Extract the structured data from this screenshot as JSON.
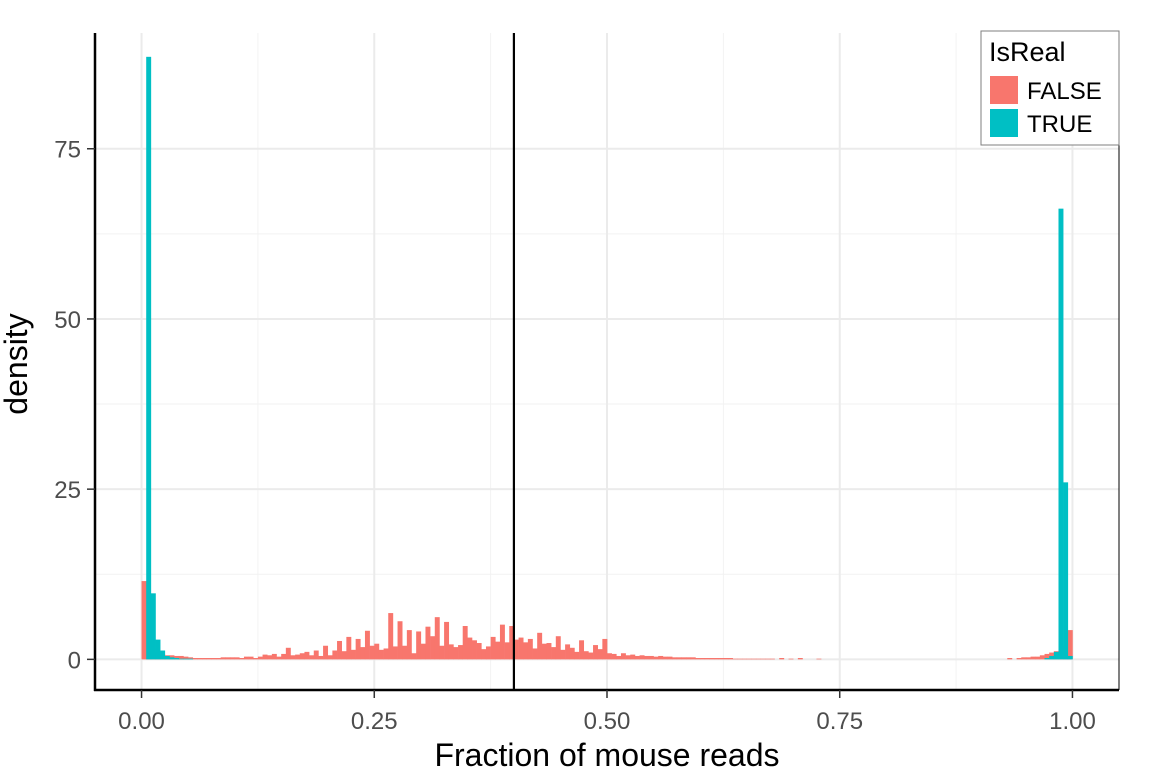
{
  "chart_data": {
    "type": "bar",
    "subtype": "overlapping-histogram",
    "xlabel": "Fraction of mouse reads",
    "ylabel": "density",
    "xlim": [
      -0.05,
      1.05
    ],
    "ylim": [
      -4.5,
      92
    ],
    "x_ticks": [
      0.0,
      0.25,
      0.5,
      0.75,
      1.0
    ],
    "x_tick_labels": [
      "0.00",
      "0.25",
      "0.50",
      "0.75",
      "1.00"
    ],
    "y_ticks": [
      0,
      25,
      50,
      75
    ],
    "y_tick_labels": [
      "0",
      "25",
      "50",
      "75"
    ],
    "grid": true,
    "bin_width": 0.005,
    "vline": {
      "x": 0.4,
      "color": "#000000"
    },
    "legend": {
      "title": "IsReal",
      "position": "top-right",
      "entries": [
        "FALSE",
        "TRUE"
      ]
    },
    "colors": {
      "FALSE": "#F8766D",
      "TRUE": "#00BFC4"
    },
    "series": [
      {
        "name": "FALSE",
        "bins": [
          [
            0.0,
            11.5
          ],
          [
            0.005,
            1.0
          ],
          [
            0.01,
            1.0
          ],
          [
            0.015,
            0.8
          ],
          [
            0.02,
            0.8
          ],
          [
            0.025,
            0.6
          ],
          [
            0.03,
            0.6
          ],
          [
            0.035,
            0.5
          ],
          [
            0.04,
            0.5
          ],
          [
            0.045,
            0.4
          ],
          [
            0.05,
            0.3
          ],
          [
            0.055,
            0.2
          ],
          [
            0.06,
            0.2
          ],
          [
            0.065,
            0.2
          ],
          [
            0.07,
            0.2
          ],
          [
            0.075,
            0.2
          ],
          [
            0.08,
            0.2
          ],
          [
            0.085,
            0.3
          ],
          [
            0.09,
            0.3
          ],
          [
            0.095,
            0.3
          ],
          [
            0.1,
            0.3
          ],
          [
            0.105,
            0.2
          ],
          [
            0.11,
            0.4
          ],
          [
            0.115,
            0.4
          ],
          [
            0.12,
            0.2
          ],
          [
            0.125,
            0.4
          ],
          [
            0.13,
            0.7
          ],
          [
            0.135,
            0.6
          ],
          [
            0.14,
            0.8
          ],
          [
            0.145,
            0.4
          ],
          [
            0.15,
            0.8
          ],
          [
            0.155,
            1.7
          ],
          [
            0.16,
            0.6
          ],
          [
            0.165,
            0.7
          ],
          [
            0.17,
            0.9
          ],
          [
            0.175,
            1.1
          ],
          [
            0.18,
            0.6
          ],
          [
            0.185,
            1.3
          ],
          [
            0.19,
            0.5
          ],
          [
            0.195,
            2.0
          ],
          [
            0.2,
            0.6
          ],
          [
            0.205,
            1.3
          ],
          [
            0.21,
            2.7
          ],
          [
            0.215,
            1.2
          ],
          [
            0.22,
            3.3
          ],
          [
            0.225,
            1.4
          ],
          [
            0.23,
            3.0
          ],
          [
            0.235,
            1.8
          ],
          [
            0.24,
            4.2
          ],
          [
            0.245,
            2.0
          ],
          [
            0.25,
            2.3
          ],
          [
            0.255,
            1.4
          ],
          [
            0.26,
            1.6
          ],
          [
            0.265,
            6.8
          ],
          [
            0.27,
            1.9
          ],
          [
            0.275,
            5.6
          ],
          [
            0.28,
            2.0
          ],
          [
            0.285,
            4.3
          ],
          [
            0.29,
            0.9
          ],
          [
            0.295,
            4.1
          ],
          [
            0.3,
            2.3
          ],
          [
            0.305,
            4.8
          ],
          [
            0.31,
            3.4
          ],
          [
            0.315,
            6.2
          ],
          [
            0.32,
            2.0
          ],
          [
            0.325,
            5.5
          ],
          [
            0.33,
            2.2
          ],
          [
            0.335,
            1.8
          ],
          [
            0.34,
            2.1
          ],
          [
            0.345,
            4.9
          ],
          [
            0.35,
            3.2
          ],
          [
            0.355,
            2.8
          ],
          [
            0.36,
            2.4
          ],
          [
            0.365,
            1.5
          ],
          [
            0.37,
            1.9
          ],
          [
            0.375,
            3.3
          ],
          [
            0.38,
            2.6
          ],
          [
            0.385,
            5.1
          ],
          [
            0.39,
            2.5
          ],
          [
            0.395,
            4.9
          ],
          [
            0.4,
            2.9
          ],
          [
            0.405,
            3.2
          ],
          [
            0.41,
            2.5
          ],
          [
            0.415,
            3.0
          ],
          [
            0.42,
            1.6
          ],
          [
            0.425,
            3.9
          ],
          [
            0.43,
            2.3
          ],
          [
            0.435,
            2.4
          ],
          [
            0.44,
            1.8
          ],
          [
            0.445,
            3.4
          ],
          [
            0.45,
            1.4
          ],
          [
            0.455,
            2.2
          ],
          [
            0.46,
            1.7
          ],
          [
            0.465,
            1.1
          ],
          [
            0.47,
            2.8
          ],
          [
            0.475,
            1.2
          ],
          [
            0.48,
            1.0
          ],
          [
            0.485,
            2.1
          ],
          [
            0.49,
            1.5
          ],
          [
            0.495,
            3.0
          ],
          [
            0.5,
            0.9
          ],
          [
            0.505,
            0.8
          ],
          [
            0.51,
            0.5
          ],
          [
            0.515,
            0.9
          ],
          [
            0.52,
            0.6
          ],
          [
            0.525,
            0.7
          ],
          [
            0.53,
            0.5
          ],
          [
            0.535,
            0.6
          ],
          [
            0.54,
            0.5
          ],
          [
            0.545,
            0.5
          ],
          [
            0.55,
            0.4
          ],
          [
            0.555,
            0.5
          ],
          [
            0.56,
            0.4
          ],
          [
            0.565,
            0.4
          ],
          [
            0.57,
            0.3
          ],
          [
            0.575,
            0.3
          ],
          [
            0.58,
            0.3
          ],
          [
            0.585,
            0.3
          ],
          [
            0.59,
            0.3
          ],
          [
            0.595,
            0.2
          ],
          [
            0.6,
            0.2
          ],
          [
            0.605,
            0.2
          ],
          [
            0.61,
            0.2
          ],
          [
            0.615,
            0.2
          ],
          [
            0.62,
            0.2
          ],
          [
            0.625,
            0.2
          ],
          [
            0.63,
            0.2
          ],
          [
            0.635,
            0.1
          ],
          [
            0.64,
            0.1
          ],
          [
            0.645,
            0.1
          ],
          [
            0.65,
            0.1
          ],
          [
            0.655,
            0.1
          ],
          [
            0.66,
            0.1
          ],
          [
            0.665,
            0.1
          ],
          [
            0.67,
            0.1
          ],
          [
            0.675,
            0.1
          ],
          [
            0.685,
            0.2
          ],
          [
            0.695,
            0.1
          ],
          [
            0.705,
            0.2
          ],
          [
            0.725,
            0.1
          ],
          [
            0.93,
            0.2
          ],
          [
            0.94,
            0.2
          ],
          [
            0.945,
            0.3
          ],
          [
            0.95,
            0.3
          ],
          [
            0.955,
            0.4
          ],
          [
            0.96,
            0.4
          ],
          [
            0.965,
            0.6
          ],
          [
            0.97,
            0.8
          ],
          [
            0.975,
            1.0
          ],
          [
            0.98,
            1.2
          ],
          [
            0.985,
            1.5
          ],
          [
            0.99,
            2.0
          ],
          [
            0.995,
            4.3
          ]
        ]
      },
      {
        "name": "TRUE",
        "bins": [
          [
            0.005,
            88.5
          ],
          [
            0.01,
            9.7
          ],
          [
            0.015,
            2.9
          ],
          [
            0.02,
            1.3
          ],
          [
            0.025,
            0.5
          ],
          [
            0.03,
            0.3
          ],
          [
            0.035,
            0.2
          ],
          [
            0.04,
            0.1
          ],
          [
            0.045,
            0.1
          ],
          [
            0.05,
            0.1
          ],
          [
            0.97,
            0.2
          ],
          [
            0.975,
            0.5
          ],
          [
            0.98,
            1.1
          ],
          [
            0.985,
            66.2
          ],
          [
            0.99,
            26.0
          ],
          [
            0.995,
            0.5
          ]
        ]
      }
    ]
  }
}
